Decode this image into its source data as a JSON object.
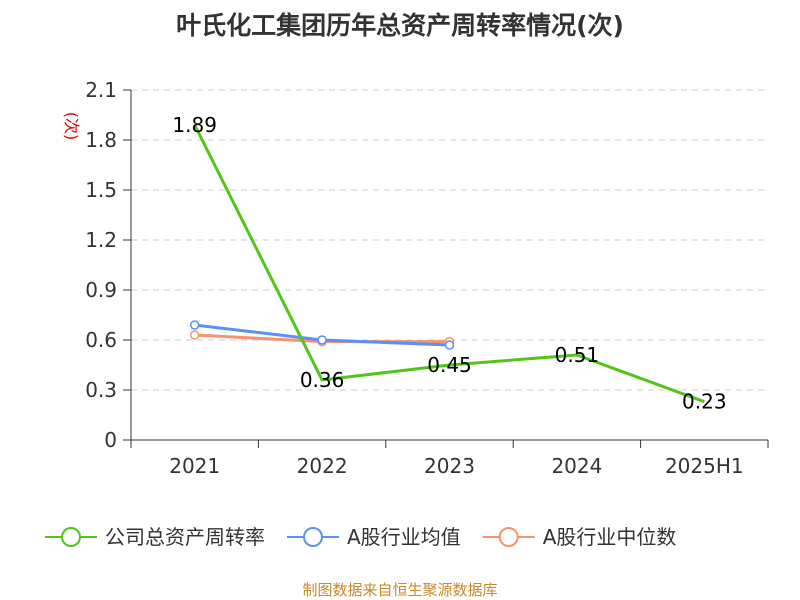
{
  "chart_data": {
    "type": "line",
    "title": "叶氏化工集团历年总资产周转率情况(次)",
    "ylabel": "(次)",
    "categories": [
      "2021",
      "2022",
      "2023",
      "2024",
      "2025H1"
    ],
    "ylim": [
      0,
      2.1
    ],
    "yticks": [
      "0",
      "0.3",
      "0.6",
      "0.9",
      "1.2",
      "1.5",
      "1.8",
      "2.1"
    ],
    "grid": true,
    "legend_position": "bottom",
    "series": [
      {
        "name": "公司总资产周转率",
        "color": "#52c41a",
        "values": [
          1.89,
          0.36,
          0.45,
          0.51,
          0.23
        ],
        "labels": [
          "1.89",
          "0.36",
          "0.45",
          "0.51",
          "0.23"
        ],
        "markers": false
      },
      {
        "name": "A股行业均值",
        "color": "#5b8ff9",
        "values": [
          0.69,
          0.6,
          0.57,
          null,
          null
        ],
        "markers": true
      },
      {
        "name": "A股行业中位数",
        "color": "#f6936b",
        "values": [
          0.63,
          0.59,
          0.59,
          null,
          null
        ],
        "markers": true
      }
    ],
    "source": "制图数据来自恒生聚源数据库"
  }
}
